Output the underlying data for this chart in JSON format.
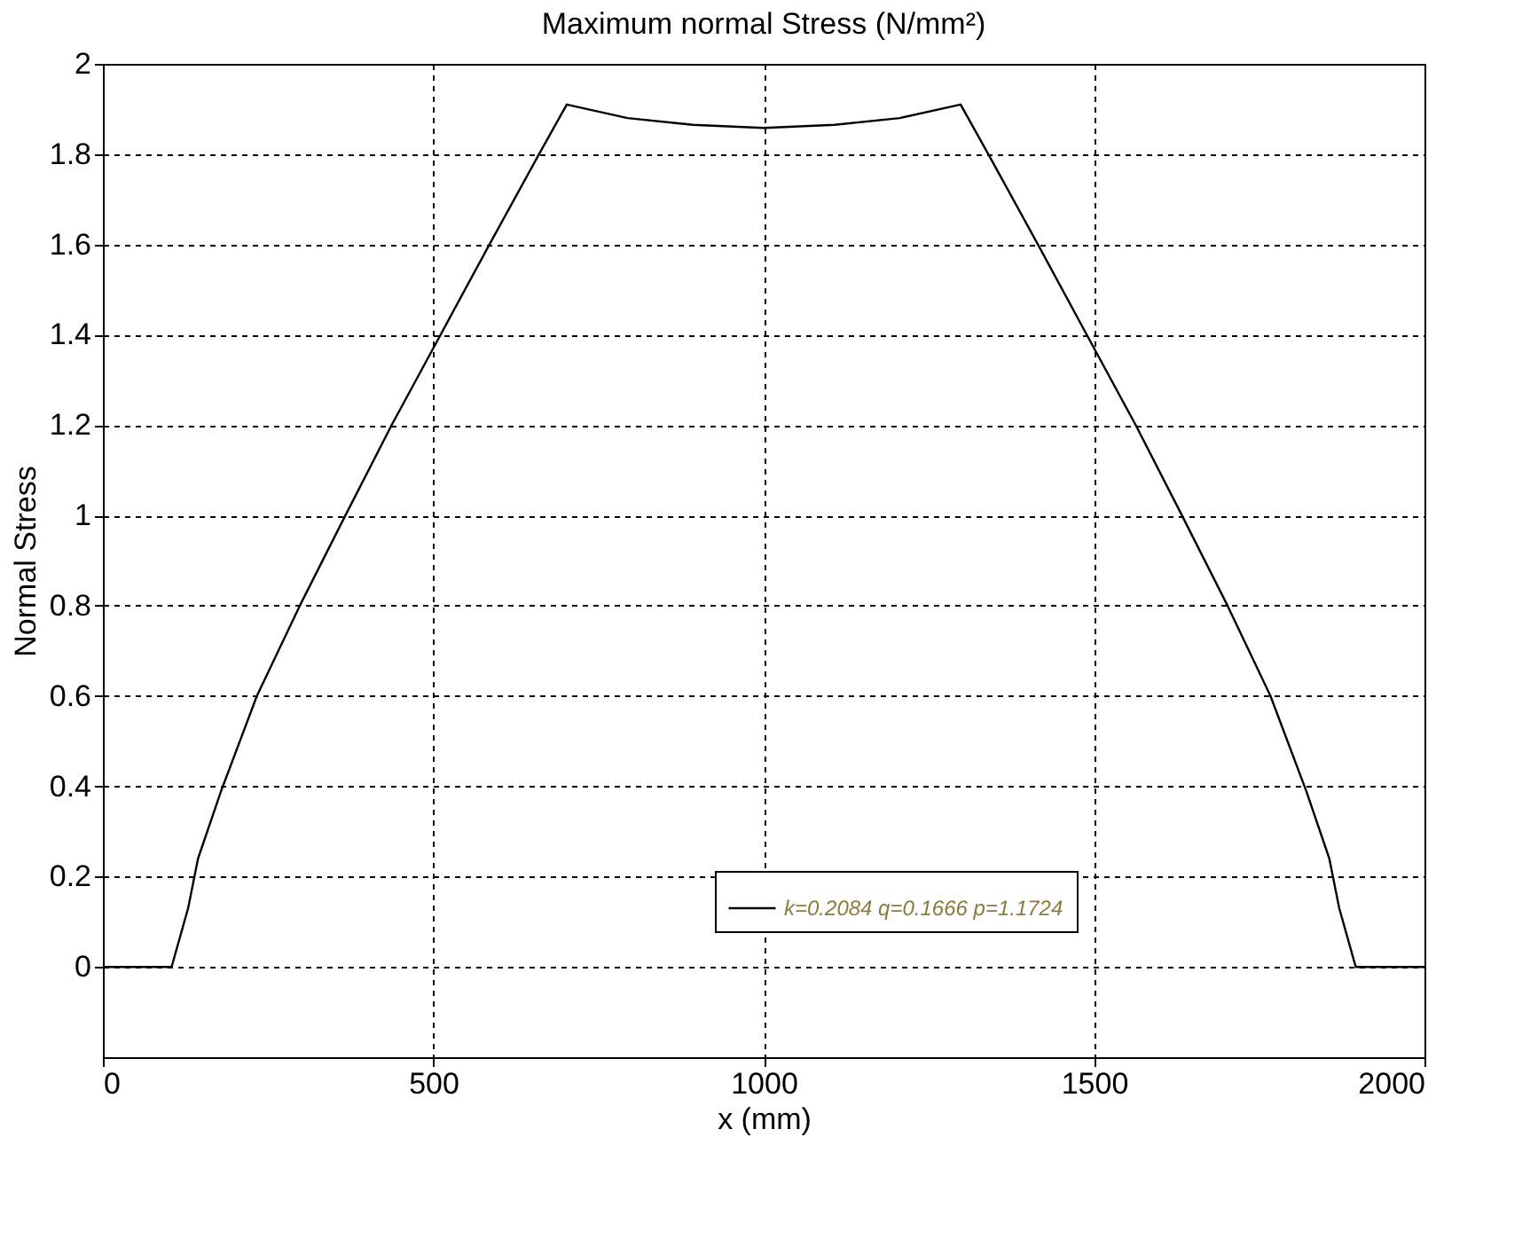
{
  "chart_data": {
    "type": "line",
    "title": "Maximum normal Stress (N/mm²)",
    "xlabel": "x (mm)",
    "ylabel": "Normal Stress",
    "xlim": [
      0,
      2000
    ],
    "ylim": [
      -0.2,
      2
    ],
    "xticks": [
      0,
      500,
      1000,
      1500,
      2000
    ],
    "yticks": [
      0,
      0.2,
      0.4,
      0.6,
      0.8,
      1,
      1.2,
      1.4,
      1.6,
      1.8,
      2
    ],
    "grid": true,
    "legend": "bottom right",
    "line_style": "solid",
    "marker": "none",
    "series": [
      {
        "name": "k=0.2084 q=0.1666 p=1.1724",
        "color": "#000000",
        "x": [
          0,
          104,
          129,
          144,
          179,
          233,
          298,
          367,
          437,
          511,
          585,
          660,
          702,
          794,
          893,
          1000,
          1107,
          1206,
          1298,
          1340,
          1415,
          1489,
          1563,
          1633,
          1702,
          1767,
          1821,
          1856,
          1871,
          1896,
          2000
        ],
        "values": [
          0,
          0,
          0.13,
          0.24,
          0.39,
          0.6,
          0.8,
          1.0,
          1.2,
          1.4,
          1.6,
          1.8,
          1.91,
          1.88,
          1.865,
          1.858,
          1.865,
          1.88,
          1.91,
          1.8,
          1.6,
          1.4,
          1.2,
          1.0,
          0.8,
          0.6,
          0.39,
          0.24,
          0.13,
          0,
          0
        ]
      }
    ]
  }
}
